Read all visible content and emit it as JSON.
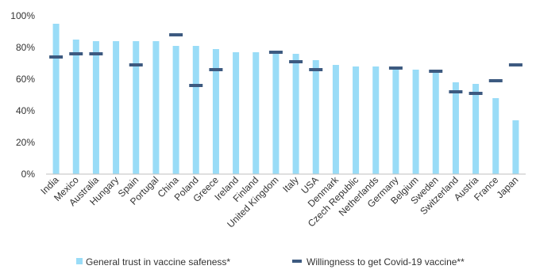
{
  "chart_data": {
    "type": "bar",
    "title": "",
    "xlabel": "",
    "ylabel": "",
    "ylim": [
      0,
      100
    ],
    "y_ticks": [
      "0%",
      "20%",
      "40%",
      "60%",
      "80%",
      "100%"
    ],
    "grid": false,
    "legend_position": "bottom",
    "categories": [
      "India",
      "Mexico",
      "Australia",
      "Hungary",
      "Spain",
      "Portugal",
      "China",
      "Poland",
      "Greece",
      "Ireland",
      "Finland",
      "United Kingdom",
      "Italy",
      "USA",
      "Denmark",
      "Czech Republic",
      "Netherlands",
      "Germany",
      "Belgium",
      "Sweden",
      "Switzerland",
      "Austria",
      "France",
      "Japan"
    ],
    "series": [
      {
        "name": "General trust in vaccine safeness*",
        "type": "bar",
        "color": "#99dcf7",
        "values": [
          95,
          85,
          84,
          84,
          84,
          84,
          81,
          81,
          79,
          77,
          77,
          78,
          76,
          72,
          69,
          68,
          68,
          67,
          66,
          66,
          58,
          57,
          48,
          34
        ]
      },
      {
        "name": "Willingness to get Covid-19 vaccine**",
        "type": "marker",
        "color": "#3d5a80",
        "values": [
          74,
          76,
          76,
          null,
          69,
          null,
          88,
          56,
          66,
          null,
          null,
          77,
          71,
          66,
          null,
          null,
          null,
          67,
          null,
          65,
          52,
          51,
          59,
          69
        ]
      }
    ]
  }
}
